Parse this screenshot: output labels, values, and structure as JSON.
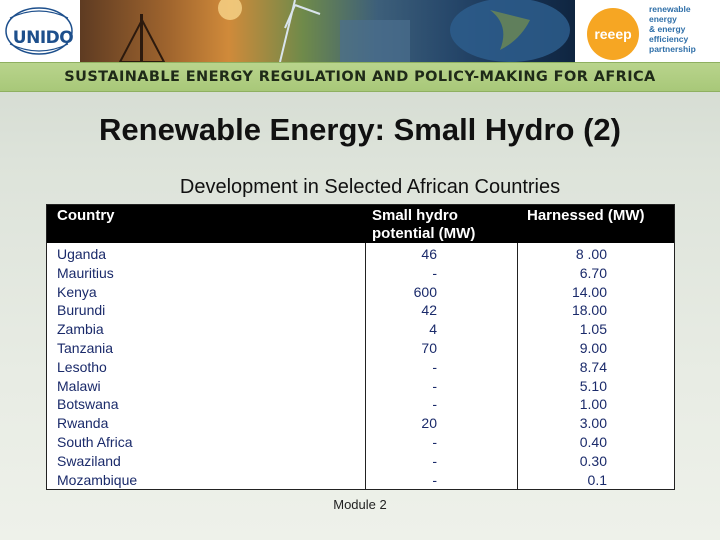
{
  "banner": {
    "left_logo": "UNIDO",
    "right_logo_mark": "reeep",
    "right_logo_lines": [
      "renewable",
      "energy",
      "& energy",
      "efficiency",
      "partnership"
    ],
    "accent": "#f6a623"
  },
  "subtitle": "SUSTAINABLE ENERGY REGULATION AND POLICY-MAKING FOR AFRICA",
  "title": "Renewable Energy: Small Hydro (2)",
  "table": {
    "caption": "Development in Selected African Countries",
    "headers": {
      "country": "Country",
      "potential_line1": "Small hydro",
      "potential_line2": "potential (MW)",
      "harnessed": "Harnessed (MW)"
    },
    "rows": [
      {
        "country": "Uganda",
        "potential": "46",
        "harnessed": "8 .00"
      },
      {
        "country": "Mauritius",
        "potential": "-",
        "harnessed": "6.70"
      },
      {
        "country": "Kenya",
        "potential": "600",
        "harnessed": "14.00"
      },
      {
        "country": "Burundi",
        "potential": "42",
        "harnessed": "18.00"
      },
      {
        "country": "Zambia",
        "potential": "4",
        "harnessed": "1.05"
      },
      {
        "country": "Tanzania",
        "potential": "70",
        "harnessed": "9.00"
      },
      {
        "country": "Lesotho",
        "potential": "-",
        "harnessed": "8.74"
      },
      {
        "country": "Malawi",
        "potential": "-",
        "harnessed": "5.10"
      },
      {
        "country": "Botswana",
        "potential": "-",
        "harnessed": "1.00"
      },
      {
        "country": "Rwanda",
        "potential": "20",
        "harnessed": "3.00"
      },
      {
        "country": "South Africa",
        "potential": "-",
        "harnessed": "0.40"
      },
      {
        "country": "Swaziland",
        "potential": "-",
        "harnessed": "0.30"
      },
      {
        "country": "Mozambique",
        "potential": "-",
        "harnessed": "0.1"
      }
    ]
  },
  "footer": "Module 2"
}
